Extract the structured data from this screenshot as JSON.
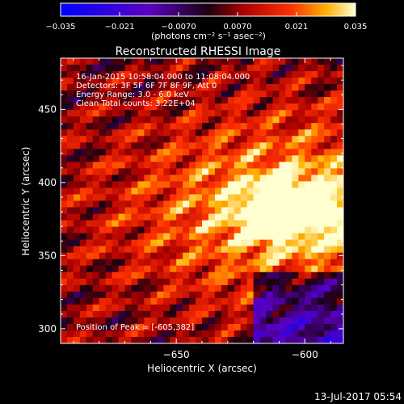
{
  "chart_data": {
    "type": "heatmap",
    "title": "Reconstructed RHESSI Image",
    "xlabel": "Heliocentric X (arcsec)",
    "ylabel": "Heliocentric Y (arcsec)",
    "xlim": [
      -695,
      -585
    ],
    "ylim": [
      290,
      485
    ],
    "xticks": [
      -650,
      -600,
      -550
    ],
    "yticks": [
      300,
      350,
      400,
      450
    ],
    "colorbar": {
      "min": -0.035,
      "max": 0.035,
      "ticks": [
        -0.035,
        -0.021,
        -0.007,
        0.007,
        0.021,
        0.035
      ],
      "tick_labels": [
        "−0.035",
        "−0.021",
        "−0.0070",
        "0.0070",
        "0.021",
        "0.035"
      ],
      "units": "(photons cm⁻² s⁻¹ asec⁻²)"
    },
    "annotations": [
      "16-Jan-2015 10:58:04.000 to 11:08:04.000",
      "Detectors: 3F 5F 6F 7F 8F 9F, Att 0",
      "Energy Range: 3.0 - 6.0 keV",
      "Clean     Total counts: 3.22E+04"
    ],
    "peak_text": "Position of Peak = [-605,382]",
    "peak": {
      "x": -605,
      "y": 382,
      "value": 0.035
    }
  },
  "footer": {
    "date": "13-Jul-2017 05:54"
  }
}
